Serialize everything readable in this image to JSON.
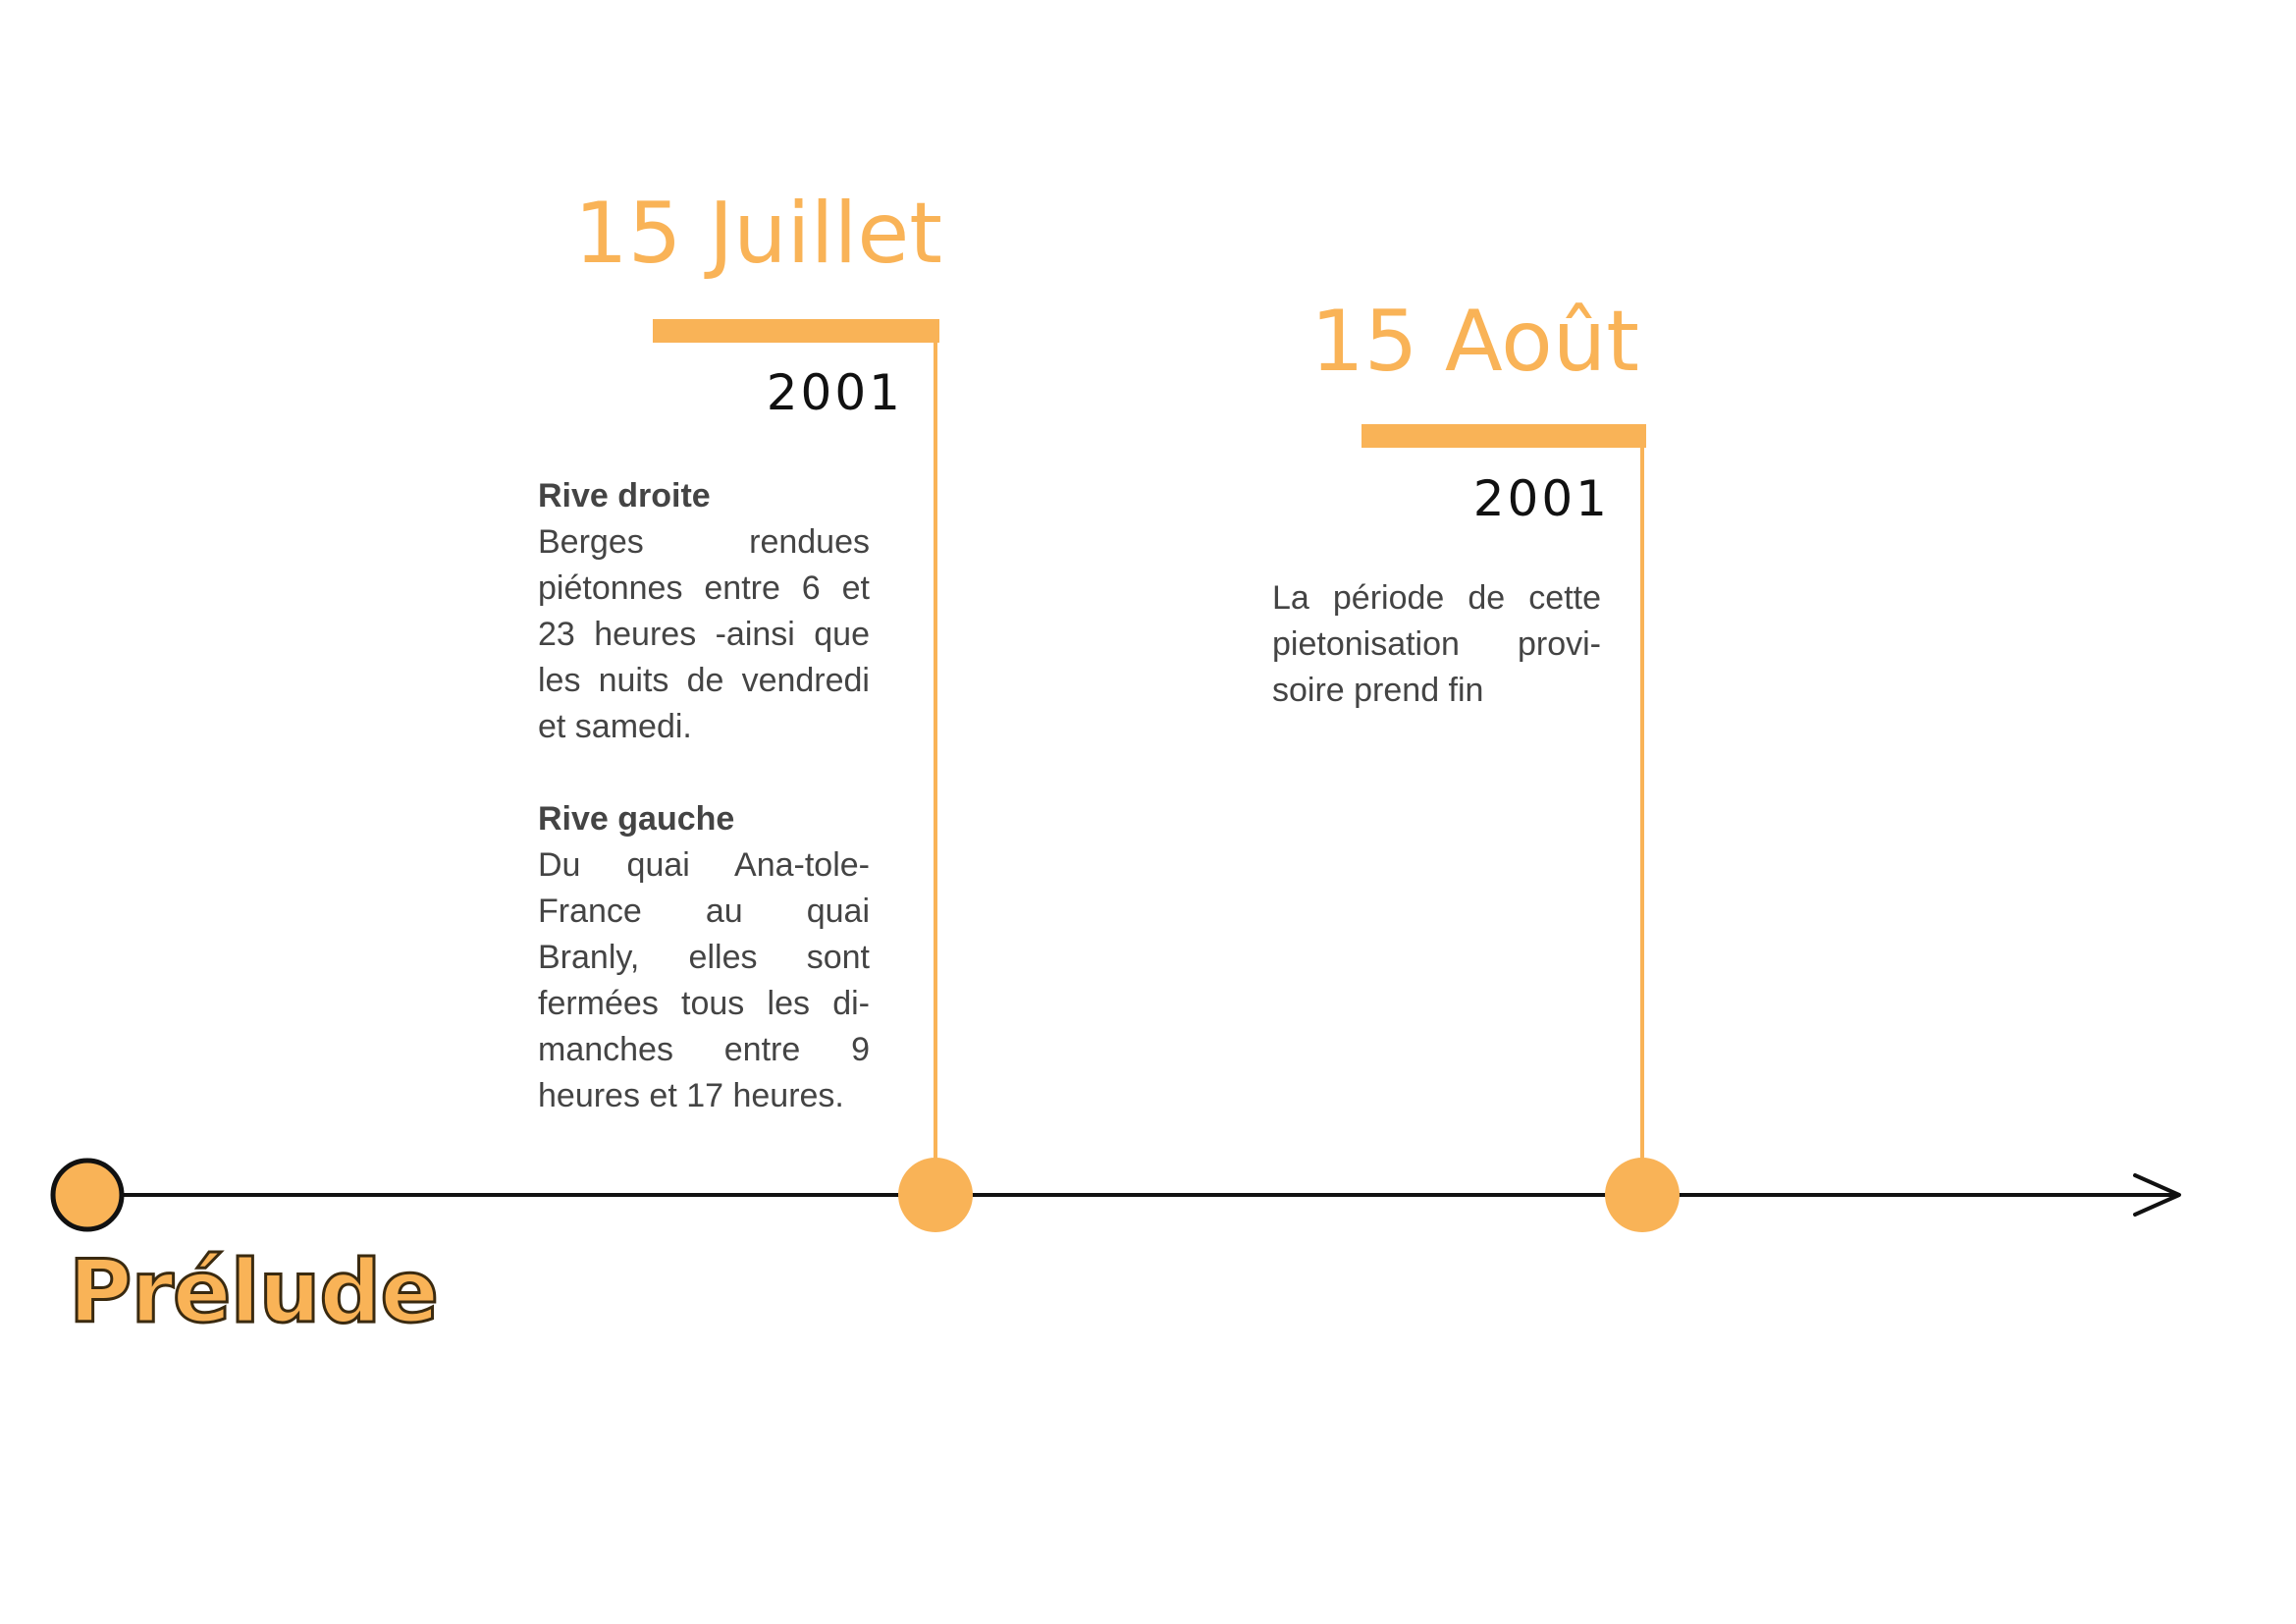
{
  "colors": {
    "accent": "#f9b357",
    "axis": "#111111",
    "body_text": "#444444",
    "year_text": "#111111"
  },
  "start": {
    "label": "Prélude"
  },
  "events": [
    {
      "date": "15 Juillet",
      "year": "2001",
      "sections": [
        {
          "title": "Rive droite",
          "lines": [
            "Berges rendues piétonnes entre 6 et 23 heures -ainsi que les nuits de vendredi et samedi."
          ]
        },
        {
          "title": "Rive gauche",
          "lines": [
            "Du quai Ana-tole-France au quai Branly, elles sont fermées tous les di-manches entre 9 heures et 17 heures."
          ]
        }
      ]
    },
    {
      "date": "15 Août",
      "year": "2001",
      "text": "La période de cette pietonisation provi-soire prend fin"
    }
  ]
}
